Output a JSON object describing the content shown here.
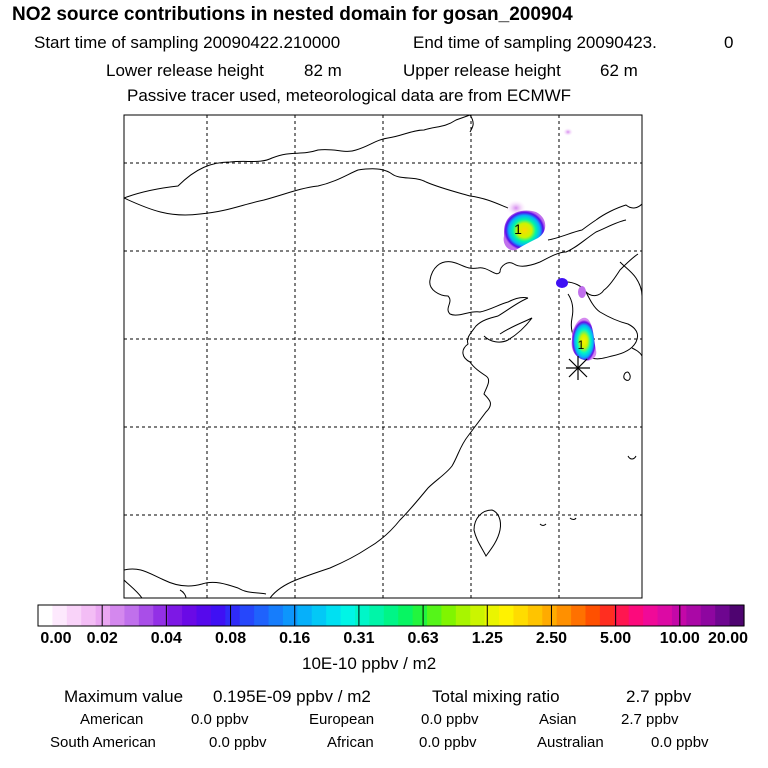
{
  "header": {
    "title": "NO2 source contributions in nested domain for gosan_200904",
    "start_label": "Start time of sampling 20090422.210000",
    "end_label": "End time of sampling 20090423.",
    "end_value": "0",
    "lower_label": "Lower release height",
    "lower_value": "82 m",
    "upper_label": "Upper release height",
    "upper_value": "62 m",
    "note": "Passive tracer used, meteorological data are from ECMWF"
  },
  "map": {
    "marker_label_1": "1",
    "marker_label_2": "1"
  },
  "colorbar": {
    "tick_labels": [
      "0.00",
      "0.02",
      "0.04",
      "0.08",
      "0.16",
      "0.31",
      "0.63",
      "1.25",
      "2.50",
      "5.00",
      "10.00",
      "20.00"
    ],
    "unit": "10E-10 ppbv / m2",
    "colors": [
      "#ffffff",
      "#fde9fd",
      "#f9d3f9",
      "#f3bdf5",
      "#eaa6f2",
      "#d488ee",
      "#c070ec",
      "#a94ee8",
      "#9330e6",
      "#7d18e5",
      "#6a0ae6",
      "#5609ec",
      "#3f10f4",
      "#2f2bf8",
      "#2647fb",
      "#1f62fc",
      "#167dfc",
      "#0d96fc",
      "#06b0fa",
      "#03c8f6",
      "#00e0f2",
      "#00f5e6",
      "#00f6c8",
      "#00f5a8",
      "#00f587",
      "#07f562",
      "#22f53e",
      "#55f519",
      "#80f500",
      "#a8f500",
      "#cbf500",
      "#eaf500",
      "#fff200",
      "#ffdc00",
      "#ffc400",
      "#ffab00",
      "#ff9000",
      "#ff7100",
      "#ff5000",
      "#ff2e20",
      "#ff1650",
      "#fc0a7c",
      "#f00a98",
      "#dc0aa4",
      "#c408a8",
      "#aa08a6",
      "#8e06a0",
      "#6e0690",
      "#4e0470"
    ]
  },
  "stats": {
    "max_label": "Maximum value",
    "max_value": "0.195E-09 ppbv / m2",
    "total_label": "Total mixing ratio",
    "total_value": "2.7 ppbv",
    "regions": [
      {
        "name": "American",
        "value": "0.0 ppbv"
      },
      {
        "name": "European",
        "value": "0.0 ppbv"
      },
      {
        "name": "Asian",
        "value": "2.7 ppbv"
      },
      {
        "name": "South American",
        "value": "0.0 ppbv"
      },
      {
        "name": "African",
        "value": "0.0 ppbv"
      },
      {
        "name": "Australian",
        "value": "0.0 ppbv"
      }
    ]
  }
}
